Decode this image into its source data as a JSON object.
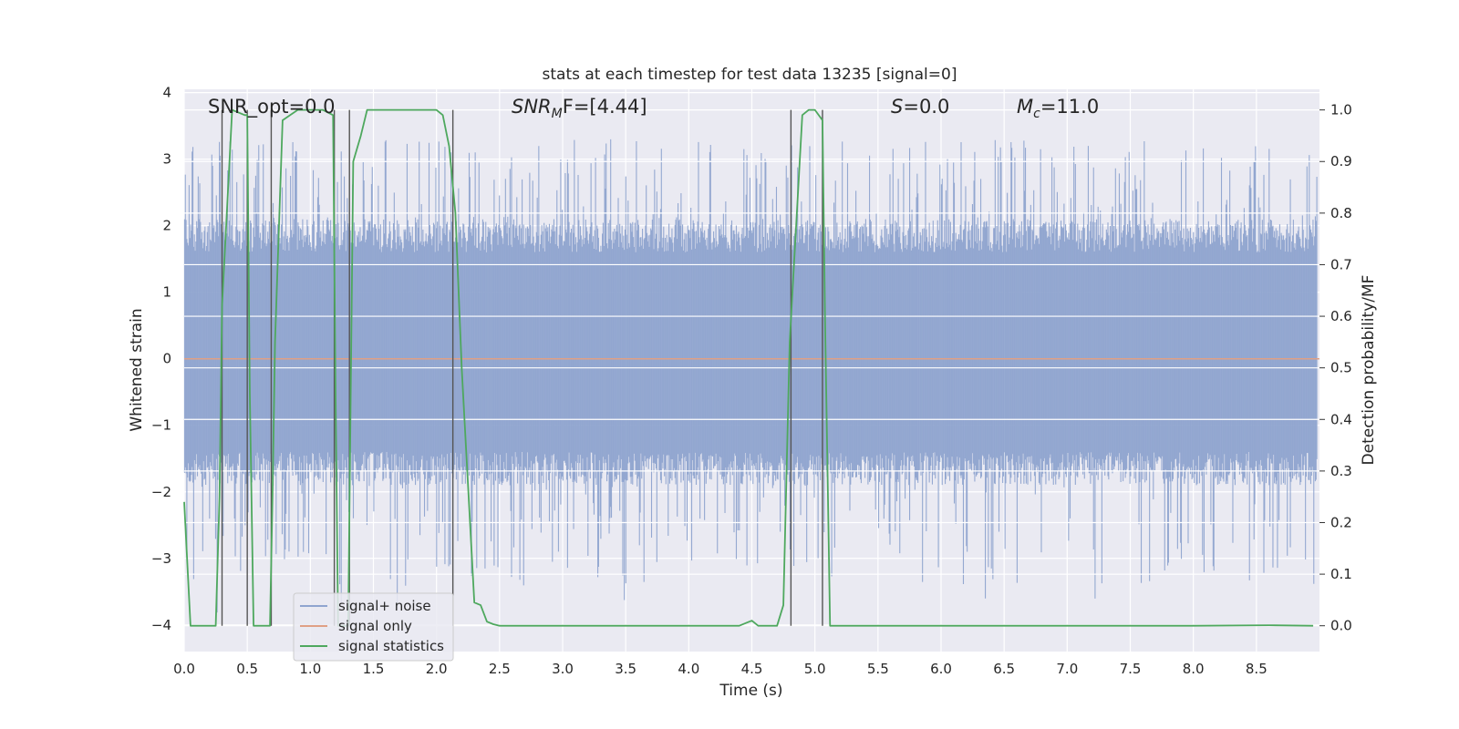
{
  "chart_data": {
    "type": "line",
    "title": "stats at each timestep for test data 13235 [signal=0]",
    "xlabel": "Time (s)",
    "ylabel_left": "Whitened strain",
    "ylabel_right": "Detection probability/MF",
    "xlim": [
      0.0,
      9.0
    ],
    "ylim_left": [
      -4.4,
      4.05
    ],
    "ylim_right": [
      -0.05,
      1.04
    ],
    "x_ticks": [
      0.0,
      0.5,
      1.0,
      1.5,
      2.0,
      2.5,
      3.0,
      3.5,
      4.0,
      4.5,
      5.0,
      5.5,
      6.0,
      6.5,
      7.0,
      7.5,
      8.0,
      8.5
    ],
    "x_tick_labels": [
      "0.0",
      "0.5",
      "1.0",
      "1.5",
      "2.0",
      "2.5",
      "3.0",
      "3.5",
      "4.0",
      "4.5",
      "5.0",
      "5.5",
      "6.0",
      "6.5",
      "7.0",
      "7.5",
      "8.0",
      "8.5"
    ],
    "y_ticks_left": [
      4,
      3,
      2,
      1,
      0,
      -1,
      -2,
      -3,
      -4
    ],
    "y_tick_labels_left": [
      "4",
      "3",
      "2",
      "1",
      "0",
      "−1",
      "−2",
      "−3",
      "−4"
    ],
    "y_ticks_right": [
      1.0,
      0.9,
      0.8,
      0.7,
      0.6,
      0.5,
      0.4,
      0.3,
      0.2,
      0.1,
      0.0
    ],
    "y_tick_labels_right": [
      "1.0",
      "0.9",
      "0.8",
      "0.7",
      "0.6",
      "0.5",
      "0.4",
      "0.3",
      "0.2",
      "0.1",
      "0.0"
    ],
    "grid": true,
    "legend_position": "lower-left",
    "annotations": {
      "snr_opt": "SNR_opt=0.0",
      "snr_mf_label": "SNR",
      "snr_mf_sub": "M",
      "snr_mf_rest": "F=[4.44]",
      "s_label": "S",
      "s_rest": "=0.0",
      "mc_label": "M",
      "mc_sub": "c",
      "mc_rest": "=11.0"
    },
    "series": [
      {
        "name": "signal+ noise",
        "color": "#8fa4cf",
        "kind": "noise",
        "y_range_core": [
          -1.7,
          1.9
        ],
        "y_range_peaks": [
          -3.85,
          3.3
        ]
      },
      {
        "name": "signal only",
        "color": "#e0a085",
        "x": [
          0.0,
          9.0
        ],
        "y": [
          0.0,
          0.0
        ]
      },
      {
        "name": "signal statistics",
        "color": "#4ea85e",
        "axis": "right",
        "x": [
          0.0,
          0.05,
          0.25,
          0.28,
          0.3,
          0.38,
          0.48,
          0.5,
          0.52,
          0.55,
          0.68,
          0.7,
          0.72,
          0.78,
          0.9,
          1.0,
          1.1,
          1.18,
          1.2,
          1.22,
          1.3,
          1.32,
          1.34,
          1.4,
          1.45,
          1.5,
          2.0,
          2.05,
          2.1,
          2.15,
          2.2,
          2.3,
          2.35,
          2.4,
          2.45,
          2.5,
          3.0,
          4.0,
          4.4,
          4.5,
          4.55,
          4.7,
          4.75,
          4.8,
          4.9,
          4.95,
          5.0,
          5.06,
          5.08,
          5.12,
          5.2,
          6.0,
          7.0,
          8.0,
          8.6,
          8.95
        ],
        "y": [
          0.24,
          0.0,
          0.0,
          0.25,
          0.62,
          1.0,
          0.99,
          0.99,
          0.45,
          0.0,
          0.0,
          0.25,
          0.55,
          0.98,
          1.0,
          1.0,
          1.0,
          0.99,
          0.45,
          0.0,
          0.0,
          0.45,
          0.9,
          0.95,
          1.0,
          1.0,
          1.0,
          0.99,
          0.93,
          0.8,
          0.5,
          0.045,
          0.04,
          0.008,
          0.003,
          0.0,
          0.0,
          0.0,
          0.0,
          0.01,
          0.0,
          0.0,
          0.04,
          0.55,
          0.99,
          1.0,
          1.0,
          0.98,
          0.6,
          0.0,
          0.0,
          0.0,
          0.0,
          0.0,
          0.001,
          0.0
        ]
      }
    ],
    "vertical_lines": [
      {
        "x": 0.3,
        "y_top": 1.0,
        "y_bottom": 0.0
      },
      {
        "x": 0.5,
        "y_top": 1.0,
        "y_bottom": 0.0
      },
      {
        "x": 0.69,
        "y_top": 1.0,
        "y_bottom": 0.0
      },
      {
        "x": 1.19,
        "y_top": 1.0,
        "y_bottom": 0.0
      },
      {
        "x": 1.31,
        "y_top": 1.0,
        "y_bottom": 0.0
      },
      {
        "x": 2.13,
        "y_top": 1.0,
        "y_bottom": 0.0
      },
      {
        "x": 4.81,
        "y_top": 1.0,
        "y_bottom": 0.0
      },
      {
        "x": 5.06,
        "y_top": 1.0,
        "y_bottom": 0.0
      }
    ]
  },
  "legend": {
    "items": [
      "signal+ noise",
      "signal only",
      "signal statistics"
    ]
  }
}
